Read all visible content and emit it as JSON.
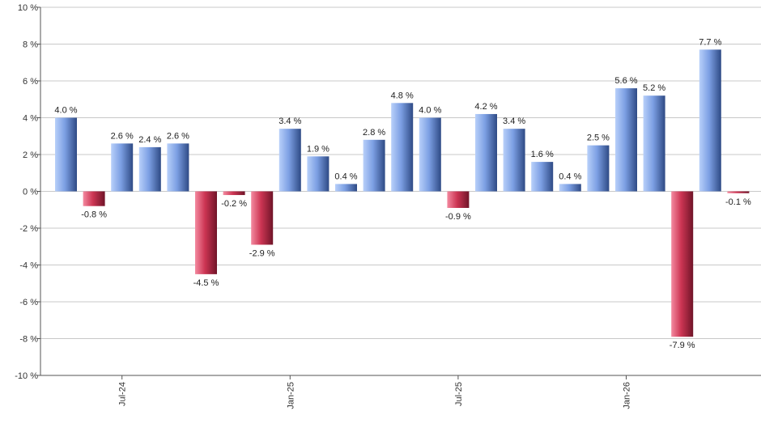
{
  "chart_data": {
    "type": "bar",
    "ylim": [
      -10,
      10
    ],
    "y_ticks": [
      10,
      8,
      6,
      4,
      2,
      0,
      -2,
      -4,
      -6,
      -8,
      -10
    ],
    "y_tick_labels": [
      "10 %",
      "8 %",
      "6 %",
      "4 %",
      "2 %",
      "0 %",
      "-2 %",
      "-4 %",
      "-6 %",
      "-8 %",
      "-10 %"
    ],
    "x_tick_labels": [
      {
        "label": "Jul-24",
        "index": 2
      },
      {
        "label": "Jan-25",
        "index": 8
      },
      {
        "label": "Jul-25",
        "index": 14
      },
      {
        "label": "Jan-26",
        "index": 20
      }
    ],
    "grid": true,
    "values": [
      4.0,
      -0.8,
      2.6,
      2.4,
      2.6,
      -4.5,
      -0.2,
      -2.9,
      3.4,
      1.9,
      0.4,
      2.8,
      4.8,
      4.0,
      -0.9,
      4.2,
      3.4,
      1.6,
      0.4,
      2.5,
      5.6,
      5.2,
      -7.9,
      7.7,
      -0.1
    ],
    "labels": [
      "4.0 %",
      "-0.8 %",
      "2.6 %",
      "2.4 %",
      "2.6 %",
      "-4.5 %",
      "-0.2 %",
      "-2.9 %",
      "3.4 %",
      "1.9 %",
      "0.4 %",
      "2.8 %",
      "4.8 %",
      "4.0 %",
      "-0.9 %",
      "4.2 %",
      "3.4 %",
      "1.6 %",
      "0.4 %",
      "2.5 %",
      "5.6 %",
      "5.2 %",
      "-7.9 %",
      "7.7 %",
      "-0.1 %"
    ],
    "colors": {
      "positive_light": "#a9c4f5",
      "positive_mid": "#6f93dd",
      "positive_dark": "#2c4680",
      "negative_light": "#f07890",
      "negative_mid": "#c8324f",
      "negative_dark": "#6e1427"
    }
  }
}
